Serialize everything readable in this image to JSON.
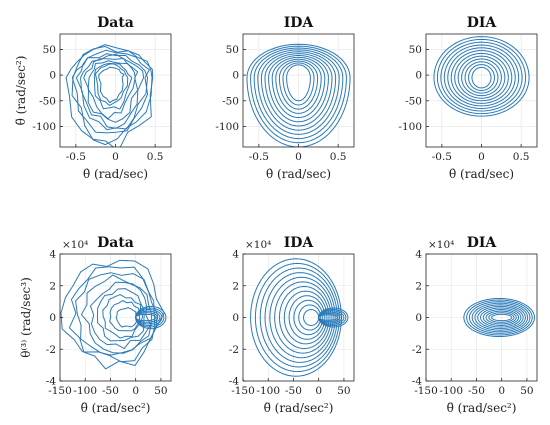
{
  "colors": {
    "series": "#2a7ab8",
    "grid": "#e3e3e3",
    "axis": "#262626"
  },
  "chart_data": [
    {
      "type": "line",
      "title": "Data",
      "xlabel": "θ̇ (rad/sec)",
      "ylabel": "θ̈ (rad/sec²)",
      "xlim": [
        -0.7,
        0.7
      ],
      "ylim": [
        -140,
        80
      ],
      "xticks": [
        -0.5,
        0,
        0.5
      ],
      "xtick_labels": [
        "-0.5",
        "0",
        "0.5"
      ],
      "yticks": [
        -100,
        -50,
        0,
        50
      ],
      "ytick_labels": [
        "-100",
        "-50",
        "0",
        "50"
      ],
      "grid": true,
      "shape": "irregular nested loops",
      "loops": {
        "count": 10,
        "inner": {
          "cx": -0.05,
          "cy": -5,
          "rx": 0.15,
          "ry_top": 20,
          "ry_bot": 45
        },
        "outer": {
          "cx": -0.05,
          "cy": -5,
          "rx": 0.55,
          "ry_top": 60,
          "ry_bot": 130
        }
      }
    },
    {
      "type": "line",
      "title": "IDA",
      "xlabel": "θ̇ (rad/sec)",
      "ylabel": "",
      "xlim": [
        -0.7,
        0.7
      ],
      "ylim": [
        -140,
        80
      ],
      "xticks": [
        -0.5,
        0,
        0.5
      ],
      "xtick_labels": [
        "-0.5",
        "0",
        "0.5"
      ],
      "yticks": [
        -100,
        -50,
        0,
        50
      ],
      "ytick_labels": [
        "-100",
        "-50",
        "0",
        "50"
      ],
      "grid": true,
      "shape": "smooth nested loops",
      "loops": {
        "count": 12,
        "inner": {
          "cx": 0,
          "cy": -5,
          "rx": 0.15,
          "ry_top": 25,
          "ry_bot": 45
        },
        "outer": {
          "cx": 0,
          "cy": -5,
          "rx": 0.65,
          "ry_top": 65,
          "ry_bot": 135
        }
      }
    },
    {
      "type": "line",
      "title": "DIA",
      "xlabel": "θ̇ (rad/sec)",
      "ylabel": "",
      "xlim": [
        -0.7,
        0.7
      ],
      "ylim": [
        -140,
        80
      ],
      "xticks": [
        -0.5,
        0,
        0.5
      ],
      "xtick_labels": [
        "-0.5",
        "0",
        "0.5"
      ],
      "yticks": [
        -100,
        -50,
        0,
        50
      ],
      "ytick_labels": [
        "-100",
        "-50",
        "0",
        "50"
      ],
      "grid": true,
      "shape": "concentric ellipses",
      "loops": {
        "count": 12,
        "inner": {
          "cx": 0,
          "cy": -5,
          "rx": 0.12,
          "ry_top": 20,
          "ry_bot": 20
        },
        "outer": {
          "cx": 0,
          "cy": -5,
          "rx": 0.6,
          "ry_top": 80,
          "ry_bot": 75
        }
      }
    },
    {
      "type": "line",
      "title": "Data",
      "xlabel": "θ̈ (rad/sec²)",
      "ylabel": "θ⁽³⁾ (rad/sec³)",
      "y_multiplier": "×10⁴",
      "xlim": [
        -150,
        70
      ],
      "ylim": [
        -4,
        4
      ],
      "xticks": [
        -150,
        -100,
        -50,
        0,
        50
      ],
      "xtick_labels": [
        "-150",
        "-100",
        "-50",
        "0",
        "50"
      ],
      "yticks": [
        -4,
        -2,
        0,
        2,
        4
      ],
      "ytick_labels": [
        "-4",
        "-2",
        "0",
        "2",
        "4"
      ],
      "grid": true,
      "shape": "irregular nested loops with tail",
      "loops": {
        "count": 9,
        "inner": {
          "cx": -18,
          "cy": 0,
          "rx": 20,
          "ry": 0.6
        },
        "outer": {
          "cx": -45,
          "cy": 0.3,
          "rx": 95,
          "ry": 3.3
        }
      },
      "tail": {
        "x_end": 60,
        "ry": 0.7
      }
    },
    {
      "type": "line",
      "title": "IDA",
      "xlabel": "θ̈ (rad/sec²)",
      "ylabel": "",
      "y_multiplier": "×10⁴",
      "xlim": [
        -150,
        70
      ],
      "ylim": [
        -4,
        4
      ],
      "xticks": [
        -150,
        -100,
        -50,
        0,
        50
      ],
      "xtick_labels": [
        "-150",
        "-100",
        "-50",
        "0",
        "50"
      ],
      "yticks": [
        -4,
        -2,
        0,
        2,
        4
      ],
      "ytick_labels": [
        "-4",
        "-2",
        "0",
        "2",
        "4"
      ],
      "grid": true,
      "shape": "nested loops with tail",
      "loops": {
        "count": 12,
        "inner": {
          "cx": -15,
          "cy": 0,
          "rx": 15,
          "ry": 0.5
        },
        "outer": {
          "cx": -45,
          "cy": 0,
          "rx": 90,
          "ry": 3.7
        }
      },
      "tail": {
        "x_end": 58,
        "ry": 0.6
      }
    },
    {
      "type": "line",
      "title": "DIA",
      "xlabel": "θ̈ (rad/sec²)",
      "ylabel": "",
      "y_multiplier": "×10⁴",
      "xlim": [
        -150,
        70
      ],
      "ylim": [
        -4,
        4
      ],
      "xticks": [
        -150,
        -100,
        -50,
        0,
        50
      ],
      "xtick_labels": [
        "-150",
        "-100",
        "-50",
        "0",
        "50"
      ],
      "yticks": [
        -4,
        -2,
        0,
        2,
        4
      ],
      "ytick_labels": [
        "-4",
        "-2",
        "0",
        "2",
        "4"
      ],
      "grid": true,
      "shape": "flat concentric ellipses",
      "loops": {
        "count": 11,
        "inner": {
          "cx": 0,
          "cy": 0,
          "rx": 20,
          "ry": 0.2
        },
        "outer": {
          "cx": -5,
          "cy": 0,
          "rx": 70,
          "ry": 1.2
        }
      }
    }
  ]
}
